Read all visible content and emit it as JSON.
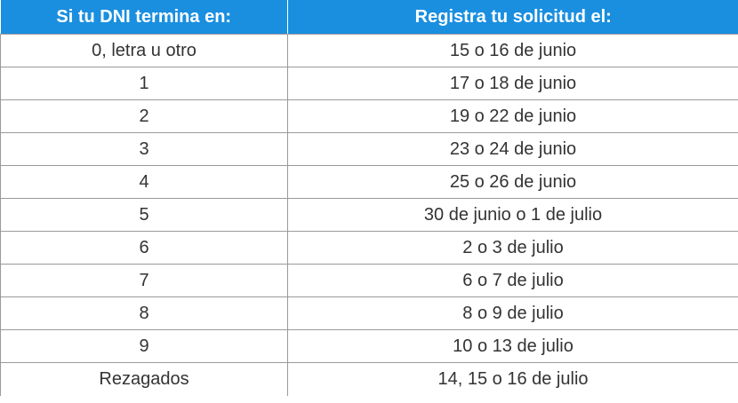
{
  "colors": {
    "header_bg": "#1a8fe0",
    "header_text": "#ffffff",
    "cell_text": "#333333",
    "border": "#9a9a9a"
  },
  "table": {
    "headers": [
      "Si tu DNI termina en:",
      "Registra tu solicitud el:"
    ],
    "rows": [
      [
        "0, letra u otro",
        "15 o 16 de junio"
      ],
      [
        "1",
        "17 o 18 de junio"
      ],
      [
        "2",
        "19 o 22 de junio"
      ],
      [
        "3",
        "23 o 24 de junio"
      ],
      [
        "4",
        "25 o 26 de junio"
      ],
      [
        "5",
        "30 de junio o 1 de julio"
      ],
      [
        "6",
        "2 o 3 de julio"
      ],
      [
        "7",
        "6 o 7 de julio"
      ],
      [
        "8",
        "8 o 9 de julio"
      ],
      [
        "9",
        "10 o 13 de julio"
      ],
      [
        "Rezagados",
        "14, 15 o 16 de julio"
      ]
    ]
  }
}
